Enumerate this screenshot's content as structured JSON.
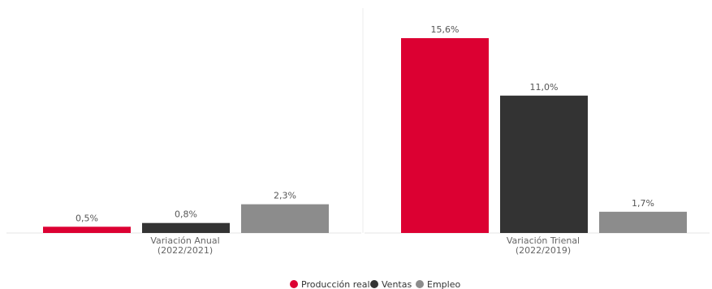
{
  "chart_data": {
    "type": "bar",
    "categories": [
      {
        "line1": "Variación Anual",
        "line2": "(2022/2021)"
      },
      {
        "line1": "Variación Trienal",
        "line2": "(2022/2019)"
      }
    ],
    "series": [
      {
        "name": "Producción real",
        "color": "#dc0032",
        "values": [
          0.5,
          15.6
        ],
        "labels": [
          "0,5%",
          "15,6%"
        ]
      },
      {
        "name": "Ventas",
        "color": "#333333",
        "values": [
          0.8,
          11.0
        ],
        "labels": [
          "0,8%",
          "11,0%"
        ]
      },
      {
        "name": "Empleo",
        "color": "#8c8c8c",
        "values": [
          2.3,
          1.7
        ],
        "labels": [
          "2,3%",
          "1,7%"
        ]
      }
    ],
    "unit": "%",
    "ylim": [
      0,
      15.6
    ],
    "grid": false,
    "legend_position": "bottom"
  }
}
